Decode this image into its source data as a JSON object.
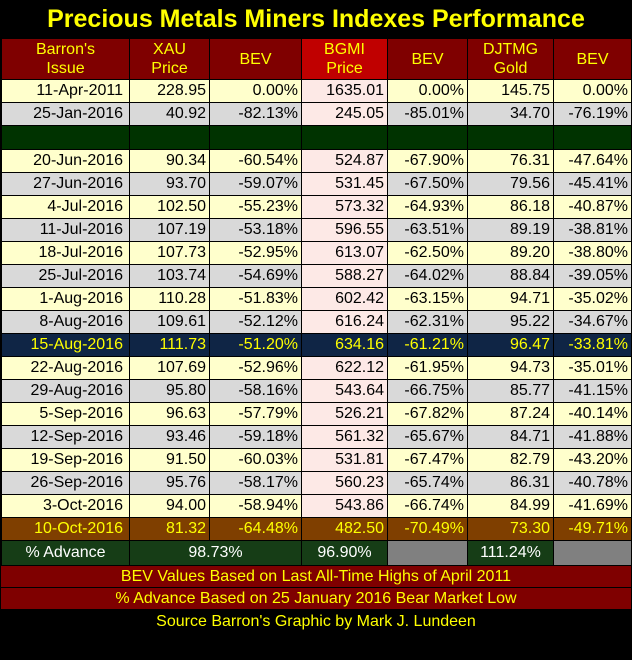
{
  "title": "Precious Metals Miners Indexes Performance",
  "headers": [
    [
      "Barron's",
      "Issue"
    ],
    [
      "XAU",
      "Price"
    ],
    [
      "BEV",
      ""
    ],
    [
      "BGMI",
      "Price"
    ],
    [
      "BEV",
      ""
    ],
    [
      "DJTMG",
      "Gold"
    ],
    [
      "BEV",
      ""
    ]
  ],
  "rows": [
    {
      "style": "light",
      "cells": [
        "11-Apr-2011",
        "228.95",
        "0.00%",
        "1635.01",
        "0.00%",
        "145.75",
        "0.00%"
      ]
    },
    {
      "style": "grey",
      "cells": [
        "25-Jan-2016",
        "40.92",
        "-82.13%",
        "245.05",
        "-85.01%",
        "34.70",
        "-76.19%"
      ]
    },
    {
      "style": "spacer",
      "cells": [
        "",
        "",
        "",
        "",
        "",
        "",
        ""
      ]
    },
    {
      "style": "light",
      "cells": [
        "20-Jun-2016",
        "90.34",
        "-60.54%",
        "524.87",
        "-67.90%",
        "76.31",
        "-47.64%"
      ]
    },
    {
      "style": "grey",
      "cells": [
        "27-Jun-2016",
        "93.70",
        "-59.07%",
        "531.45",
        "-67.50%",
        "79.56",
        "-45.41%"
      ]
    },
    {
      "style": "light",
      "cells": [
        "4-Jul-2016",
        "102.50",
        "-55.23%",
        "573.32",
        "-64.93%",
        "86.18",
        "-40.87%"
      ]
    },
    {
      "style": "grey",
      "cells": [
        "11-Jul-2016",
        "107.19",
        "-53.18%",
        "596.55",
        "-63.51%",
        "89.19",
        "-38.81%"
      ]
    },
    {
      "style": "light",
      "cells": [
        "18-Jul-2016",
        "107.73",
        "-52.95%",
        "613.07",
        "-62.50%",
        "89.20",
        "-38.80%"
      ]
    },
    {
      "style": "grey",
      "cells": [
        "25-Jul-2016",
        "103.74",
        "-54.69%",
        "588.27",
        "-64.02%",
        "88.84",
        "-39.05%"
      ]
    },
    {
      "style": "light",
      "cells": [
        "1-Aug-2016",
        "110.28",
        "-51.83%",
        "602.42",
        "-63.15%",
        "94.71",
        "-35.02%"
      ]
    },
    {
      "style": "grey",
      "cells": [
        "8-Aug-2016",
        "109.61",
        "-52.12%",
        "616.24",
        "-62.31%",
        "95.22",
        "-34.67%"
      ]
    },
    {
      "style": "highlight",
      "cells": [
        "15-Aug-2016",
        "111.73",
        "-51.20%",
        "634.16",
        "-61.21%",
        "96.47",
        "-33.81%"
      ]
    },
    {
      "style": "light",
      "cells": [
        "22-Aug-2016",
        "107.69",
        "-52.96%",
        "622.12",
        "-61.95%",
        "94.73",
        "-35.01%"
      ]
    },
    {
      "style": "grey",
      "cells": [
        "29-Aug-2016",
        "95.80",
        "-58.16%",
        "543.64",
        "-66.75%",
        "85.77",
        "-41.15%"
      ]
    },
    {
      "style": "light",
      "cells": [
        "5-Sep-2016",
        "96.63",
        "-57.79%",
        "526.21",
        "-67.82%",
        "87.24",
        "-40.14%"
      ]
    },
    {
      "style": "grey",
      "cells": [
        "12-Sep-2016",
        "93.46",
        "-59.18%",
        "561.32",
        "-65.67%",
        "84.71",
        "-41.88%"
      ]
    },
    {
      "style": "light",
      "cells": [
        "19-Sep-2016",
        "91.50",
        "-60.03%",
        "531.81",
        "-67.47%",
        "82.79",
        "-43.20%"
      ]
    },
    {
      "style": "grey",
      "cells": [
        "26-Sep-2016",
        "95.76",
        "-58.17%",
        "560.23",
        "-65.74%",
        "86.31",
        "-40.78%"
      ]
    },
    {
      "style": "light",
      "cells": [
        "3-Oct-2016",
        "94.00",
        "-58.94%",
        "543.86",
        "-66.74%",
        "84.99",
        "-41.69%"
      ]
    },
    {
      "style": "final",
      "cells": [
        "10-Oct-2016",
        "81.32",
        "-64.48%",
        "482.50",
        "-70.49%",
        "73.30",
        "-49.71%"
      ]
    }
  ],
  "advance": {
    "label": "% Advance",
    "xau": "98.73%",
    "bgmi": "96.90%",
    "djtmg": "111.24%"
  },
  "footer": {
    "line1": "BEV Values Based on Last All-Time Highs of April 2011",
    "line2": "% Advance Based on 25 January 2016 Bear Market Low"
  },
  "source": "Source Barron's    Graphic by Mark J. Lundeen"
}
